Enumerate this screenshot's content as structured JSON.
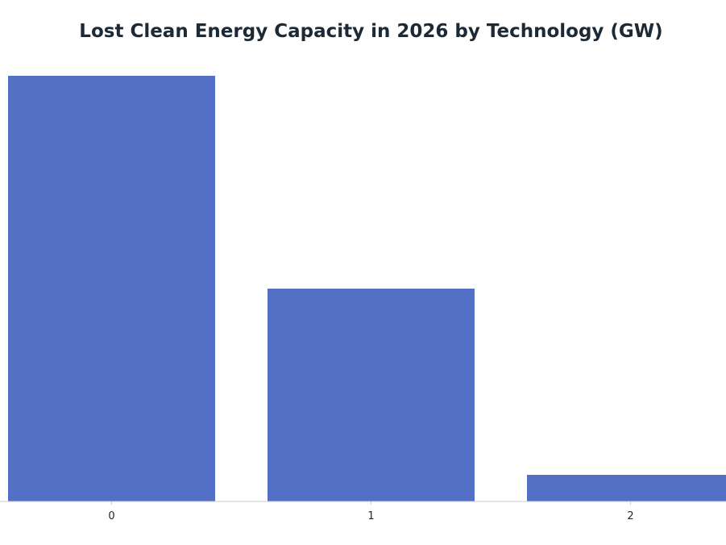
{
  "chart_data": {
    "type": "bar",
    "title": "Lost Clean Energy Capacity in 2026 by Technology (GW)",
    "xlabel": "",
    "ylabel": "",
    "categories": [
      "0",
      "1",
      "2"
    ],
    "values": [
      16,
      8,
      1
    ],
    "ylim": [
      0,
      16.8
    ],
    "grid": false,
    "legend": "none",
    "colors": {
      "bar": "#5470c6",
      "axis": "#cccccc",
      "title": "#1b2a36",
      "tick_text": "#262626"
    }
  }
}
